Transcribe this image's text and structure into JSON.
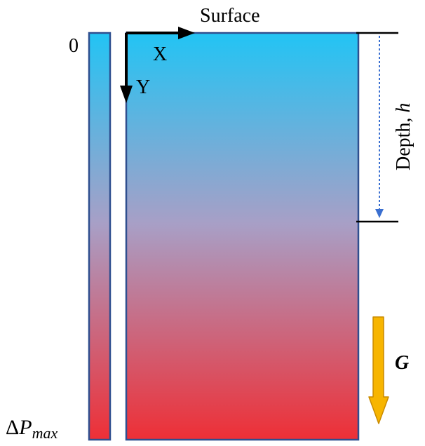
{
  "labels": {
    "surface": "Surface",
    "x_axis": "X",
    "y_axis": "Y",
    "depth": "Depth,",
    "depth_var": "h",
    "gravity": "G",
    "scale_top": "0",
    "scale_bottom_delta": "Δ",
    "scale_bottom_p": "P",
    "scale_bottom_sub": "max"
  },
  "colors": {
    "top": "#22c4f4",
    "middle": "#a89fc6",
    "bottom": "#ee2f36",
    "border": "#2f4f8f",
    "gravity_arrow": "#f7b500",
    "gravity_outline": "#c98a00",
    "depth_arrow": "#3a6fd0"
  }
}
